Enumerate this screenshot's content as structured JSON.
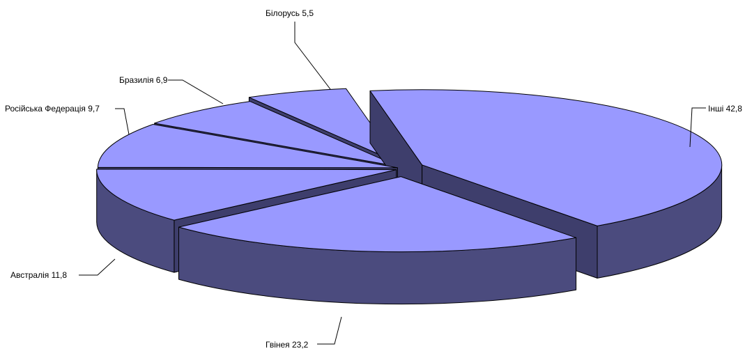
{
  "chart_data": {
    "type": "pie",
    "style": "3d-exploded",
    "title": "",
    "legend": "none",
    "slices": [
      {
        "label": "Інші",
        "value": 42.8,
        "text": "Інші 42,8"
      },
      {
        "label": "Гвінея",
        "value": 23.2,
        "text": "Гвінея 23,2"
      },
      {
        "label": "Австралія",
        "value": 11.8,
        "text": "Австралія 11,8"
      },
      {
        "label": "Російська Федерація",
        "value": 9.7,
        "text": "Російська Федерація 9,7"
      },
      {
        "label": "Бразилія",
        "value": 6.9,
        "text": "Бразилія 6,9"
      },
      {
        "label": "Білорусь",
        "value": 5.5,
        "text": "Білорусь 5,5"
      }
    ],
    "colors": {
      "top": "#9999ff",
      "side": "#4b4b7e",
      "side_dark": "#3e3e6c",
      "outline": "#000000"
    }
  }
}
